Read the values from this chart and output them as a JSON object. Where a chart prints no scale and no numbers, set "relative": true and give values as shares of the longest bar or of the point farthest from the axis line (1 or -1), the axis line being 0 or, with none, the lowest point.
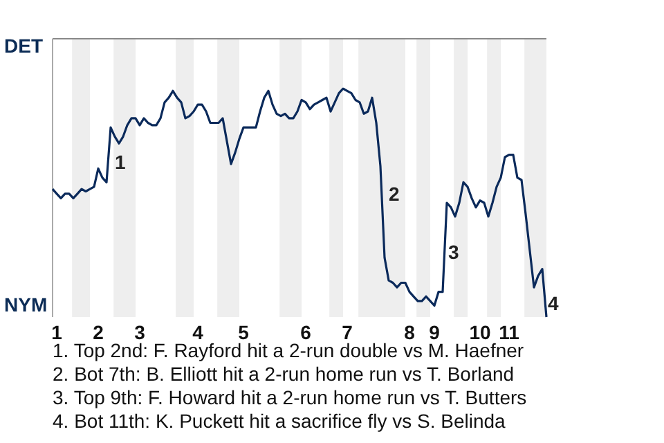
{
  "chart_data": {
    "type": "line",
    "color": "#0b2a5b",
    "relative": true,
    "categories": [
      null,
      "1",
      null,
      null,
      null,
      null,
      null,
      null,
      null,
      null,
      null,
      "2",
      null,
      null,
      null,
      null,
      null,
      null,
      null,
      null,
      null,
      "3",
      null,
      null,
      null,
      null,
      null,
      null,
      null,
      null,
      null,
      null,
      null,
      null,
      null,
      "4",
      null,
      null,
      null,
      null,
      null,
      null,
      null,
      null,
      null,
      null,
      "5",
      null,
      null,
      null,
      null,
      null,
      null,
      null,
      null,
      null,
      null,
      null,
      null,
      null,
      null,
      "6",
      null,
      null,
      null,
      null,
      null,
      null,
      null,
      null,
      null,
      "7",
      null,
      null,
      null,
      null,
      null,
      null,
      null,
      null,
      null,
      null,
      null,
      null,
      null,
      null,
      "8",
      null,
      null,
      null,
      null,
      null,
      "9",
      null,
      null,
      null,
      null,
      null,
      null,
      null,
      null,
      null,
      null,
      "10",
      null,
      null,
      null,
      null,
      null,
      null,
      "11",
      null,
      null,
      null,
      null,
      null,
      null,
      null,
      null,
      null
    ],
    "values": [
      0.56,
      0.54,
      0.52,
      0.54,
      0.54,
      0.52,
      0.54,
      0.56,
      0.55,
      0.56,
      0.57,
      0.65,
      0.61,
      0.59,
      0.83,
      0.79,
      0.76,
      0.79,
      0.84,
      0.87,
      0.87,
      0.84,
      0.87,
      0.85,
      0.84,
      0.84,
      0.87,
      0.94,
      0.96,
      0.99,
      0.96,
      0.94,
      0.87,
      0.88,
      0.9,
      0.93,
      0.93,
      0.9,
      0.85,
      0.85,
      0.85,
      0.87,
      0.77,
      0.67,
      0.72,
      0.78,
      0.83,
      0.83,
      0.83,
      0.83,
      0.9,
      0.96,
      0.99,
      0.93,
      0.89,
      0.88,
      0.89,
      0.87,
      0.87,
      0.9,
      0.95,
      0.94,
      0.91,
      0.93,
      0.94,
      0.95,
      0.96,
      0.9,
      0.94,
      0.98,
      1,
      0.99,
      0.98,
      0.95,
      0.94,
      0.89,
      0.9,
      0.96,
      0.85,
      0.66,
      0.26,
      0.16,
      0.15,
      0.13,
      0.15,
      0.15,
      0.11,
      0.09,
      0.07,
      0.07,
      0.09,
      0.07,
      0.05,
      0.11,
      0.11,
      0.5,
      0.48,
      0.44,
      0.5,
      0.59,
      0.57,
      0.52,
      0.48,
      0.51,
      0.5,
      0.44,
      0.5,
      0.57,
      0.61,
      0.7,
      0.71,
      0.71,
      0.61,
      0.6,
      0.45,
      0.29,
      0.13,
      0.18,
      0.21,
      0
    ],
    "annotations": [
      "DET",
      "NYM",
      "1",
      "2",
      "3",
      "4",
      "1. Top 2nd: F. Rayford hit a 2-run double vs M. Haefner",
      "2. Bot 7th: B. Elliott hit a 2-run home run vs T. Borland",
      "3. Top 9th: F. Howard hit a 2-run home run vs T. Butters",
      "4. Bot 11th: K. Puckett hit a sacrifice fly vs S. Belinda"
    ]
  }
}
